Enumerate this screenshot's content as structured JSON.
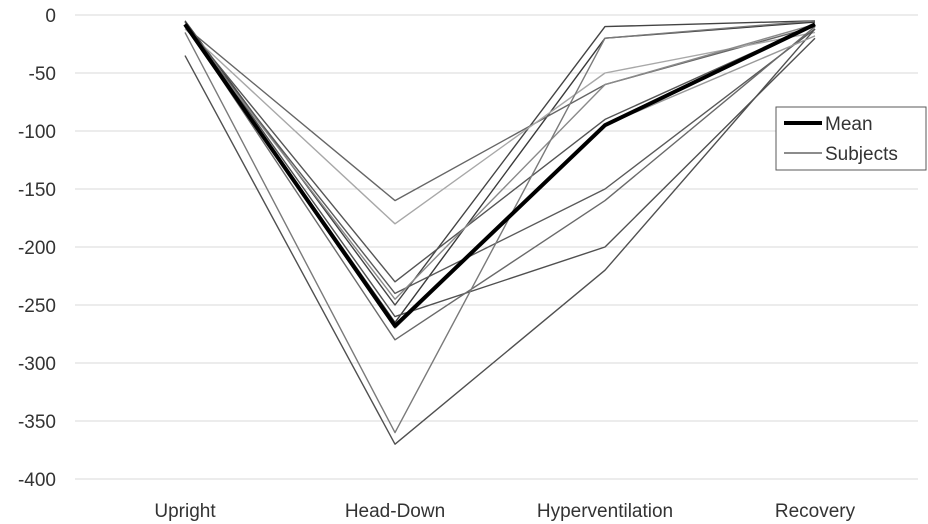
{
  "chart_data": {
    "type": "line",
    "categories": [
      "Upright",
      "Head-Down",
      "Hyperventilation",
      "Recovery"
    ],
    "ylim": [
      -400,
      0
    ],
    "yticks": [
      0,
      -50,
      -100,
      -150,
      -200,
      -250,
      -300,
      -350,
      -400
    ],
    "grid": true,
    "legend_position": "right",
    "legend": [
      {
        "label": "Mean",
        "style": "thick-black"
      },
      {
        "label": "Subjects",
        "style": "thin-gray"
      }
    ],
    "mean": {
      "name": "Mean",
      "values": [
        -8,
        -268,
        -95,
        -8
      ]
    },
    "subjects": [
      {
        "values": [
          -5,
          -250,
          -10,
          -5
        ]
      },
      {
        "values": [
          -8,
          -265,
          -20,
          -6
        ]
      },
      {
        "values": [
          -10,
          -160,
          -60,
          -10
        ]
      },
      {
        "values": [
          -12,
          -180,
          -50,
          -15
        ]
      },
      {
        "values": [
          -8,
          -230,
          -90,
          -8
        ]
      },
      {
        "values": [
          -10,
          -240,
          -150,
          -12
        ]
      },
      {
        "values": [
          -6,
          -260,
          -200,
          -20
        ]
      },
      {
        "values": [
          -8,
          -280,
          -160,
          -10
        ]
      },
      {
        "values": [
          -10,
          -245,
          -60,
          -8
        ]
      },
      {
        "values": [
          -35,
          -370,
          -220,
          -12
        ]
      },
      {
        "values": [
          -15,
          -360,
          -20,
          -5
        ]
      },
      {
        "values": [
          -8,
          -270,
          -95,
          -18
        ]
      }
    ],
    "colors": {
      "grid": "#d9d9d9",
      "mean": "#000000",
      "subjects": [
        "#444444",
        "#3a3a3a",
        "#666666",
        "#a8a8a8",
        "#555555",
        "#5a5a5a",
        "#505050",
        "#6a6a6a",
        "#8a8a8a",
        "#505050",
        "#7a7a7a",
        "#999999"
      ]
    }
  }
}
